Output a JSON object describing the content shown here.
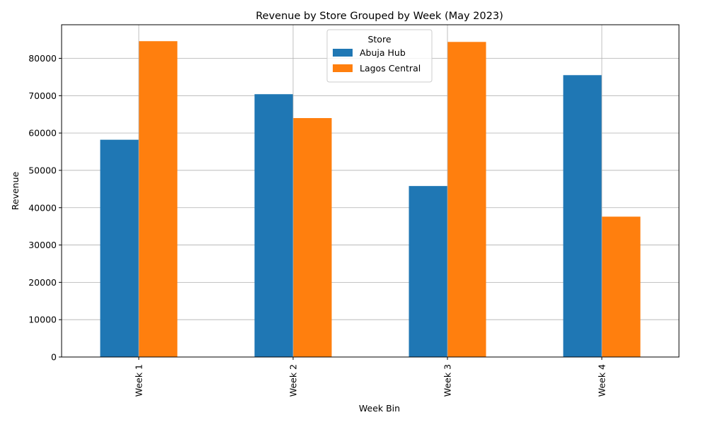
{
  "chart_data": {
    "type": "bar",
    "title": "Revenue by Store Grouped by Week (May 2023)",
    "xlabel": "Week Bin",
    "ylabel": "Revenue",
    "categories": [
      "Week 1",
      "Week 2",
      "Week 3",
      "Week 4"
    ],
    "series": [
      {
        "name": "Abuja Hub",
        "color": "#1f77b4",
        "values": [
          58200,
          70400,
          45800,
          75500
        ]
      },
      {
        "name": "Lagos Central",
        "color": "#ff7f0e",
        "values": [
          84600,
          64000,
          84400,
          37600
        ]
      }
    ],
    "ylim": [
      0,
      89000
    ],
    "yticks": [
      0,
      10000,
      20000,
      30000,
      40000,
      50000,
      60000,
      70000,
      80000
    ],
    "grid": true,
    "legend": {
      "title": "Store",
      "placement": "top-center"
    }
  }
}
